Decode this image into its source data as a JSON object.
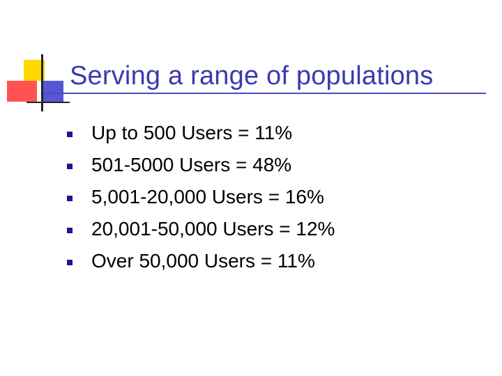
{
  "slide": {
    "title": "Serving a range of populations",
    "bullets": [
      "Up to 500 Users = 11%",
      "501-5000 Users = 48%",
      "5,001-20,000 Users = 16%",
      "20,001-50,000 Users = 12%",
      "Over 50,000 Users = 11%"
    ]
  },
  "colors": {
    "title": "#3a3ab0",
    "bullet_marker": "#1a1a8c",
    "logo_yellow": "#ffd800",
    "logo_red": "#ff4040",
    "logo_blue": "#3a3acf"
  }
}
